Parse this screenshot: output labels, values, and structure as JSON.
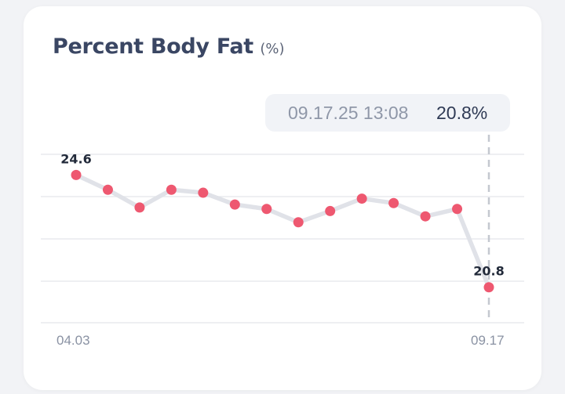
{
  "chart_data": {
    "type": "line",
    "title": "Percent Body Fat",
    "unit": "(%)",
    "x_tick_labels": [
      "04.03",
      "09.17"
    ],
    "y_domain": [
      19.6,
      25.3
    ],
    "values": [
      24.6,
      24.1,
      23.5,
      24.1,
      24.0,
      23.6,
      23.45,
      23.0,
      23.38,
      23.8,
      23.65,
      23.2,
      23.45,
      20.8
    ],
    "point_labels": [
      {
        "index": 0,
        "text": "24.6"
      },
      {
        "index": 13,
        "text": "20.8"
      }
    ],
    "grid": true,
    "colors": {
      "point": "#ee5870",
      "line": "#e0e2e8",
      "grid": "#e8eaee",
      "marker": "#c4c8d0"
    },
    "selected": {
      "index": 13,
      "time": "09.17.25 13:08",
      "value": "20.8%"
    }
  }
}
